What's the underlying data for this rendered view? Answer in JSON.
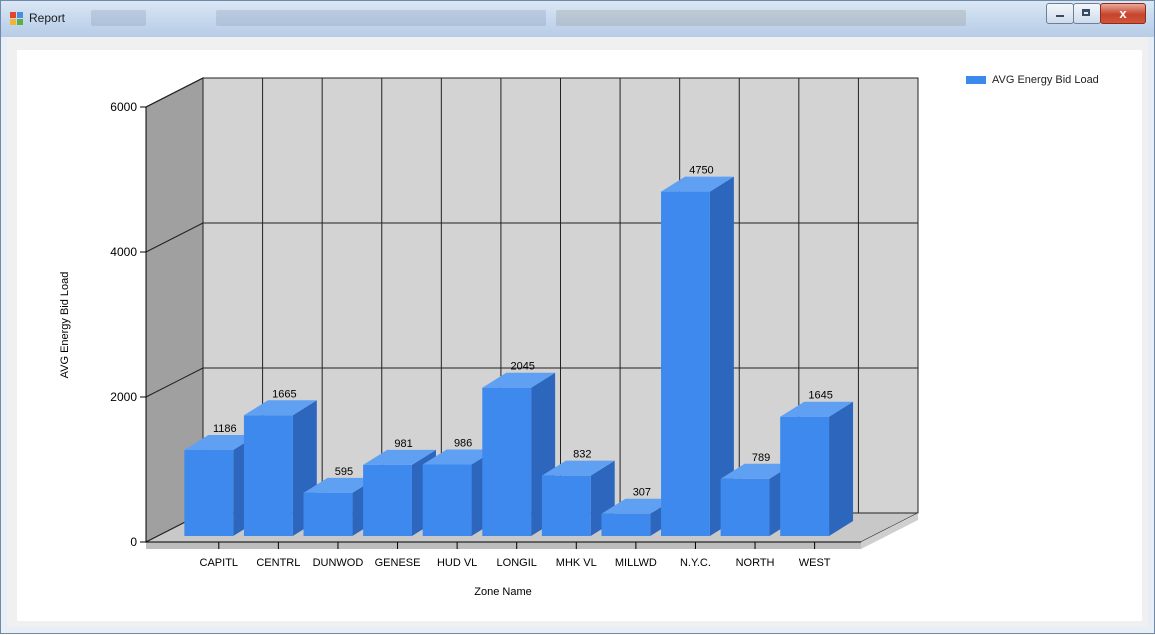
{
  "window": {
    "title": "Report",
    "close_glyph": "x",
    "icons": [
      "app-icon",
      "minimize-icon",
      "maximize-icon",
      "close-icon"
    ]
  },
  "chart_data": {
    "type": "bar",
    "categories": [
      "CAPITL",
      "CENTRL",
      "DUNWOD",
      "GENESE",
      "HUD VL",
      "LONGIL",
      "MHK VL",
      "MILLWD",
      "N.Y.C.",
      "NORTH",
      "WEST"
    ],
    "series": [
      {
        "name": "AVG Energy Bid Load",
        "values": [
          1186,
          1665,
          595,
          981,
          986,
          2045,
          832,
          307,
          4750,
          789,
          1645
        ]
      }
    ],
    "data_labels": [
      "1186",
      "1665",
      "595",
      "981",
      "986",
      "2045",
      "832",
      "307",
      "4750",
      "789",
      "1645"
    ],
    "xlabel": "Zone Name",
    "ylabel": "AVG Energy Bid Load",
    "ylim": [
      0,
      6000
    ],
    "yticks": [
      0,
      2000,
      4000,
      6000
    ],
    "grid": true,
    "three_d": true,
    "legend_position": "top-right",
    "colors": {
      "bar_front": "#3d89ee",
      "bar_side": "#2c66bd",
      "bar_top": "#5fa0f2",
      "back_wall": "#d3d3d3",
      "side_wall": "#a0a0a0",
      "floor": "#c8c8c8"
    }
  },
  "legend": {
    "label": "AVG Energy Bid Load"
  }
}
